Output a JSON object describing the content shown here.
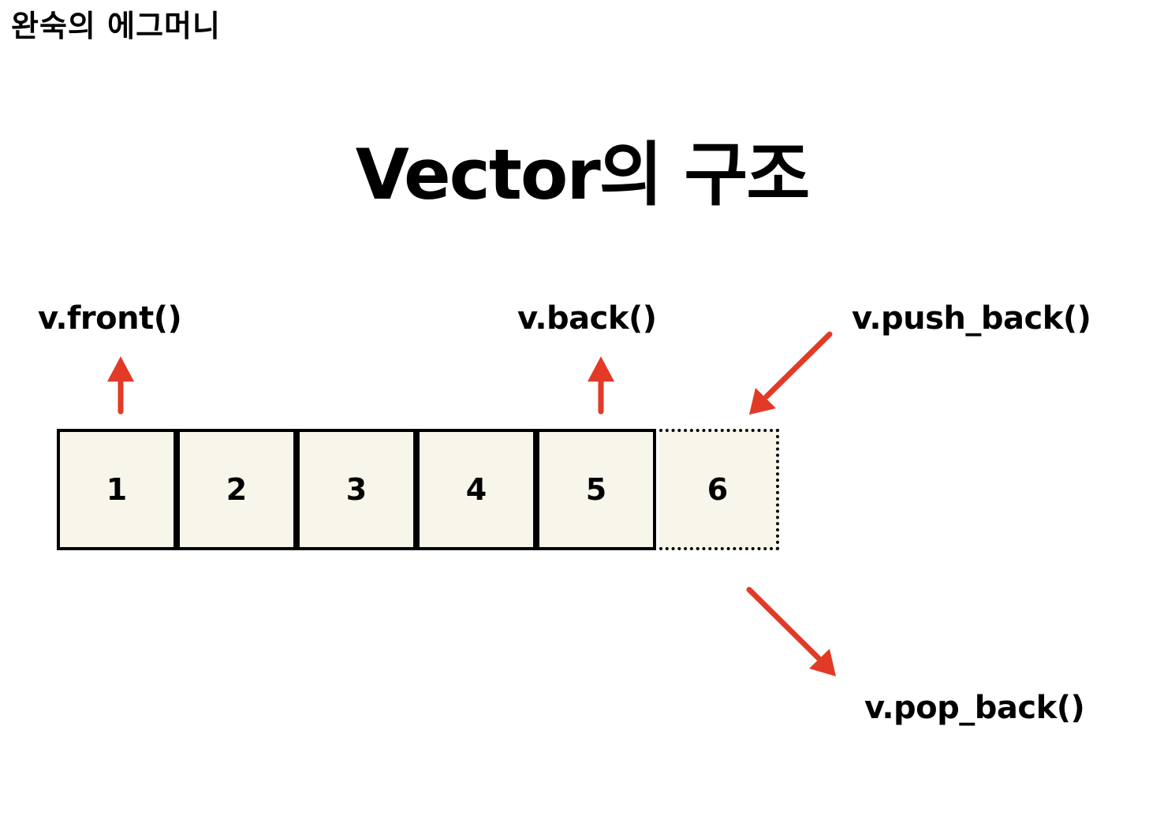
{
  "brand": "완숙의 에그머니",
  "title": "Vector의 구조",
  "labels": {
    "front": "v.front()",
    "back": "v.back()",
    "push_back": "v.push_back()",
    "pop_back": "v.pop_back()"
  },
  "cells": [
    "1",
    "2",
    "3",
    "4",
    "5",
    "6"
  ],
  "colors": {
    "arrow": "#e23a27",
    "cell_fill": "#f8f6ea",
    "border": "#000000"
  }
}
